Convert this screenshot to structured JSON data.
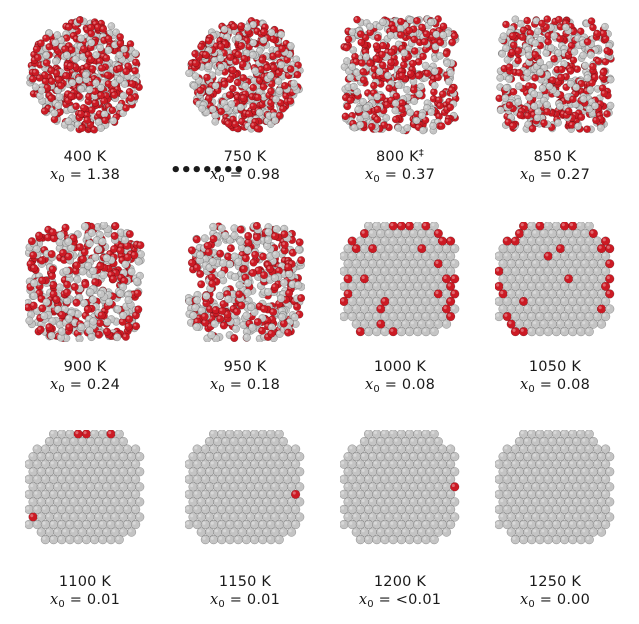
{
  "panels": [
    {
      "temp": "400 K",
      "dagger": "",
      "x_label": "x",
      "sub": "0",
      "eq": "= 1.38",
      "oxide_fraction": 1.38,
      "style": "rough"
    },
    {
      "temp": "750 K",
      "dagger": "",
      "x_label": "x",
      "sub": "0",
      "eq": "= 0.98",
      "oxide_fraction": 0.98,
      "style": "rough"
    },
    {
      "temp": "800 K",
      "dagger": "‡",
      "x_label": "x",
      "sub": "0",
      "eq": "= 0.37",
      "oxide_fraction": 0.37,
      "style": "dense"
    },
    {
      "temp": "850 K",
      "dagger": "",
      "x_label": "x",
      "sub": "0",
      "eq": "= 0.27",
      "oxide_fraction": 0.27,
      "style": "dense"
    },
    {
      "temp": "900 K",
      "dagger": "",
      "x_label": "x",
      "sub": "0",
      "eq": "= 0.24",
      "oxide_fraction": 0.24,
      "style": "mixed"
    },
    {
      "temp": "950 K",
      "dagger": "",
      "x_label": "x",
      "sub": "0",
      "eq": "= 0.18",
      "oxide_fraction": 0.18,
      "style": "mixed"
    },
    {
      "temp": "1000 K",
      "dagger": "",
      "x_label": "x",
      "sub": "0",
      "eq": "= 0.08",
      "oxide_fraction": 0.08,
      "style": "edges"
    },
    {
      "temp": "1050 K",
      "dagger": "",
      "x_label": "x",
      "sub": "0",
      "eq": "= 0.08",
      "oxide_fraction": 0.08,
      "style": "edges"
    },
    {
      "temp": "1100 K",
      "dagger": "",
      "x_label": "x",
      "sub": "0",
      "eq": "= 0.01",
      "oxide_fraction": 0.01,
      "style": "clean"
    },
    {
      "temp": "1150 K",
      "dagger": "",
      "x_label": "x",
      "sub": "0",
      "eq": "= 0.01",
      "oxide_fraction": 0.01,
      "style": "clean"
    },
    {
      "temp": "1200 K",
      "dagger": "",
      "x_label": "x",
      "sub": "0",
      "eq": "= <0.01",
      "oxide_fraction": 0.005,
      "style": "clean"
    },
    {
      "temp": "1250 K",
      "dagger": "",
      "x_label": "x",
      "sub": "0",
      "eq": "= 0.00",
      "oxide_fraction": 0.0,
      "style": "clean"
    }
  ],
  "ellipsis": "•••••••",
  "colors": {
    "metal": "#c4c4c4",
    "oxygen": "#cc1a24"
  }
}
